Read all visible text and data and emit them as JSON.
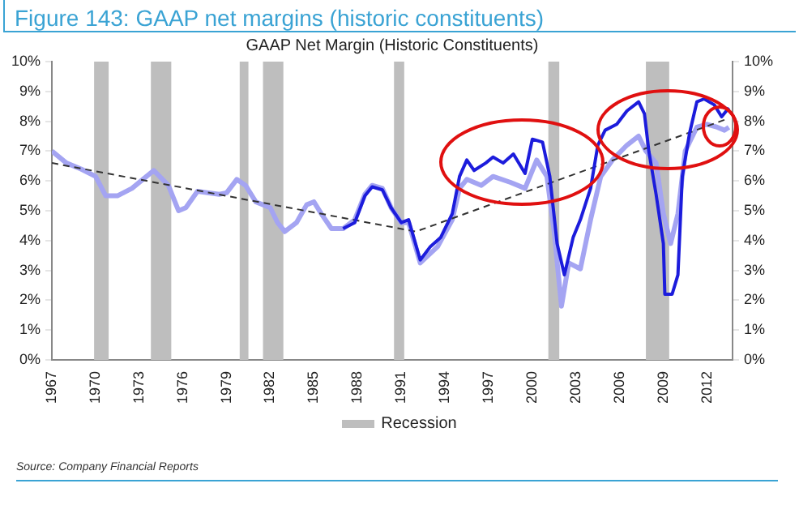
{
  "chart_data": {
    "type": "line",
    "title": "Figure 143: GAAP net margins (historic constituents)",
    "subtitle": "GAAP Net Margin (Historic Constituents)",
    "annotations": [
      "Source: Company Financial Reports"
    ],
    "xlim": [
      1967,
      2013.75
    ],
    "xticks": [
      {
        "value": 1967,
        "label": "1967"
      },
      {
        "value": 1970,
        "label": "1970"
      },
      {
        "value": 1973,
        "label": "1973"
      },
      {
        "value": 1976,
        "label": "1976"
      },
      {
        "value": 1979,
        "label": "1979"
      },
      {
        "value": 1982,
        "label": "1982"
      },
      {
        "value": 1985,
        "label": "1985"
      },
      {
        "value": 1988,
        "label": "1988"
      },
      {
        "value": 1991,
        "label": "1991"
      },
      {
        "value": 1994,
        "label": "1994"
      },
      {
        "value": 1997,
        "label": "1997"
      },
      {
        "value": 2000,
        "label": "2000"
      },
      {
        "value": 2003,
        "label": "2003"
      },
      {
        "value": 2006,
        "label": "2006"
      },
      {
        "value": 2009,
        "label": "2009"
      },
      {
        "value": 2012,
        "label": "2012"
      }
    ],
    "ylim": [
      0,
      10
    ],
    "yticks": [
      {
        "value": 0,
        "label": "0%"
      },
      {
        "value": 1,
        "label": "1%"
      },
      {
        "value": 2,
        "label": "2%"
      },
      {
        "value": 3,
        "label": "3%"
      },
      {
        "value": 4,
        "label": "4%"
      },
      {
        "value": 5,
        "label": "5%"
      },
      {
        "value": 6,
        "label": "6%"
      },
      {
        "value": 7,
        "label": "7%"
      },
      {
        "value": 8,
        "label": "8%"
      },
      {
        "value": 9,
        "label": "9%"
      },
      {
        "value": 10,
        "label": "10%"
      }
    ],
    "y2lim": [
      0,
      10
    ],
    "y2ticks": [
      {
        "value": 0,
        "label": "0%"
      },
      {
        "value": 1,
        "label": "1%"
      },
      {
        "value": 2,
        "label": "2%"
      },
      {
        "value": 3,
        "label": "3%"
      },
      {
        "value": 4,
        "label": "4%"
      },
      {
        "value": 5,
        "label": "5%"
      },
      {
        "value": 6,
        "label": "6%"
      },
      {
        "value": 7,
        "label": "7%"
      },
      {
        "value": 8,
        "label": "8%"
      },
      {
        "value": 9,
        "label": "9%"
      },
      {
        "value": 10,
        "label": "10%"
      }
    ],
    "grid": false,
    "legend": "bottom",
    "marker": "none",
    "bands": [
      {
        "axis": "x",
        "from": 1969.9,
        "to": 1970.9,
        "label": "Recession",
        "color": "#bebebe"
      },
      {
        "axis": "x",
        "from": 1973.8,
        "to": 1975.2,
        "color": "#bebebe"
      },
      {
        "axis": "x",
        "from": 1979.9,
        "to": 1980.5,
        "color": "#bebebe"
      },
      {
        "axis": "x",
        "from": 1981.5,
        "to": 1982.9,
        "color": "#bebebe"
      },
      {
        "axis": "x",
        "from": 1990.5,
        "to": 1991.2,
        "color": "#bebebe"
      },
      {
        "axis": "x",
        "from": 2001.1,
        "to": 2001.85,
        "color": "#bebebe"
      },
      {
        "axis": "x",
        "from": 2007.8,
        "to": 2009.4,
        "color": "#bebebe"
      }
    ],
    "series": [
      {
        "color": "#a4a4f2",
        "x": [
          1967,
          1968,
          1969,
          1970,
          1970.7,
          1971.5,
          1972.5,
          1973.5,
          1974,
          1975,
          1975.7,
          1976.2,
          1977,
          1978.5,
          1979,
          1979.7,
          1980.3,
          1981,
          1982,
          1982.5,
          1983,
          1983.8,
          1984.5,
          1985,
          1985.5,
          1986.2,
          1987,
          1987.8,
          1988.5,
          1989,
          1989.7,
          1990.3,
          1991,
          1991.5,
          1992.3,
          1993.5,
          1994.5,
          1995,
          1995.5,
          1996.5,
          1997.3,
          1998.5,
          1999.5,
          2000.3,
          2001,
          2001.5,
          2002,
          2002.5,
          2003.3,
          2004,
          2004.7,
          2005.5,
          2006.5,
          2007.3,
          2007.8,
          2008.5,
          2009,
          2009.5,
          2010,
          2010.5,
          2011.3,
          2012,
          2012.7,
          2013.2,
          2013.5
        ],
        "values": [
          7.0,
          6.6,
          6.4,
          6.15,
          5.5,
          5.5,
          5.75,
          6.15,
          6.35,
          5.85,
          5.0,
          5.1,
          5.65,
          5.55,
          5.6,
          6.05,
          5.85,
          5.3,
          5.1,
          4.6,
          4.3,
          4.6,
          5.2,
          5.3,
          4.9,
          4.4,
          4.4,
          4.7,
          5.55,
          5.85,
          5.75,
          5.1,
          4.6,
          4.6,
          3.25,
          3.8,
          4.7,
          5.75,
          6.05,
          5.85,
          6.15,
          5.95,
          5.75,
          6.7,
          6.15,
          4.3,
          1.8,
          3.25,
          3.05,
          4.7,
          6.15,
          6.7,
          7.2,
          7.5,
          7.0,
          6.6,
          4.9,
          3.9,
          4.9,
          7.0,
          7.8,
          7.9,
          7.8,
          7.7,
          7.8
        ]
      },
      {
        "color": "#1c1cdc",
        "x": [
          1987,
          1987.8,
          1988.5,
          1989,
          1989.7,
          1990.3,
          1991,
          1991.5,
          1992.3,
          1993,
          1993.7,
          1994.5,
          1995,
          1995.5,
          1996,
          1996.8,
          1997.3,
          1998,
          1998.7,
          1999.5,
          2000,
          2000.7,
          2001.2,
          2001.7,
          2002.2,
          2002.8,
          2003.3,
          2004,
          2004.5,
          2005,
          2005.8,
          2006.5,
          2007.3,
          2007.7,
          2008,
          2008.5,
          2009,
          2009.1,
          2009.6,
          2010,
          2010.3,
          2010.8,
          2011.3,
          2011.8,
          2012.5,
          2013,
          2013.5
        ],
        "values": [
          4.4,
          4.6,
          5.5,
          5.8,
          5.7,
          5.1,
          4.6,
          4.7,
          3.35,
          3.8,
          4.1,
          4.9,
          6.15,
          6.7,
          6.35,
          6.6,
          6.8,
          6.6,
          6.9,
          6.25,
          7.4,
          7.3,
          6.15,
          3.9,
          2.85,
          4.1,
          4.7,
          5.75,
          7.2,
          7.7,
          7.9,
          8.35,
          8.65,
          8.25,
          7.0,
          5.55,
          3.9,
          2.2,
          2.2,
          2.85,
          6.15,
          7.6,
          8.65,
          8.75,
          8.55,
          8.15,
          8.45
        ]
      },
      {
        "color": "#333333",
        "line_style": "dashed",
        "x": [
          1967,
          1992,
          2013.5
        ],
        "values": [
          6.6,
          4.3,
          8.1
        ]
      }
    ]
  }
}
